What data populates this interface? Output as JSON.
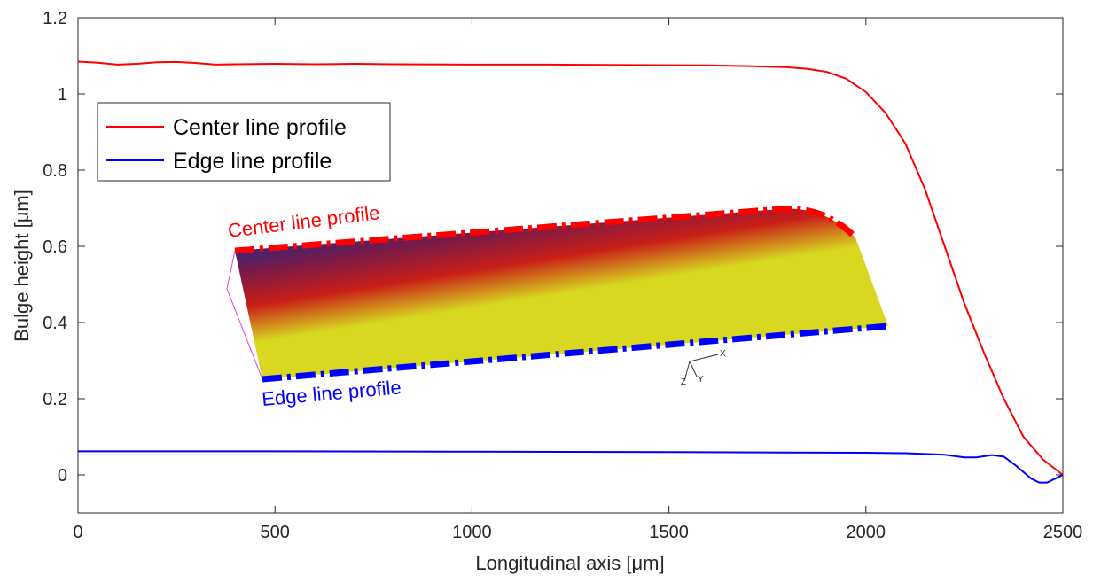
{
  "chart_data": {
    "type": "line",
    "xlabel": "Longitudinal axis [μm]",
    "ylabel": "Bulge height [μm]",
    "xlim": [
      0,
      2500
    ],
    "xticks": [
      0,
      500,
      1000,
      1500,
      2000,
      2500
    ],
    "ylim": [
      -0.1,
      1.2
    ],
    "yticks": [
      0,
      0.2,
      0.4,
      0.6,
      0.8,
      1,
      1.2
    ],
    "legend": "upper left",
    "series": [
      {
        "name": "Center line profile",
        "color": "#ff0000",
        "x": [
          0,
          50,
          100,
          150,
          200,
          250,
          300,
          350,
          400,
          500,
          600,
          700,
          800,
          1000,
          1200,
          1400,
          1600,
          1700,
          1800,
          1850,
          1900,
          1950,
          2000,
          2050,
          2100,
          2150,
          2200,
          2250,
          2300,
          2350,
          2400,
          2450,
          2500
        ],
        "values": [
          1.085,
          1.082,
          1.077,
          1.079,
          1.083,
          1.084,
          1.081,
          1.077,
          1.078,
          1.079,
          1.078,
          1.079,
          1.078,
          1.077,
          1.077,
          1.076,
          1.075,
          1.073,
          1.07,
          1.066,
          1.058,
          1.04,
          1.005,
          0.95,
          0.87,
          0.75,
          0.6,
          0.45,
          0.32,
          0.2,
          0.1,
          0.04,
          0
        ]
      },
      {
        "name": "Edge line profile",
        "color": "#0000ff",
        "x": [
          0,
          500,
          1000,
          1500,
          2000,
          2100,
          2200,
          2250,
          2280,
          2320,
          2350,
          2380,
          2420,
          2440,
          2460,
          2480,
          2500
        ],
        "values": [
          0.062,
          0.062,
          0.061,
          0.06,
          0.058,
          0.057,
          0.053,
          0.046,
          0.046,
          0.052,
          0.048,
          0.025,
          -0.01,
          -0.02,
          -0.02,
          -0.01,
          0
        ]
      }
    ],
    "inset": {
      "top_label": "Center line profile",
      "bottom_label": "Edge line profile",
      "axes": [
        "X",
        "Y",
        "Z"
      ]
    }
  }
}
